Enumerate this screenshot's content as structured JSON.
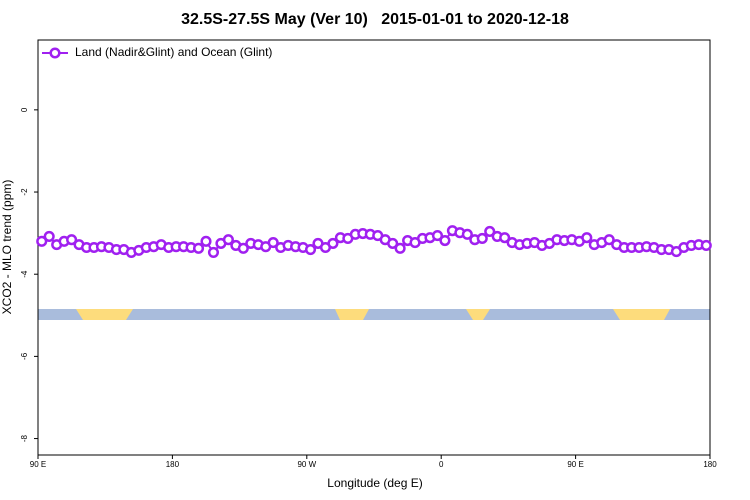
{
  "chart_data": {
    "type": "line",
    "title": "32.5S-27.5S May (Ver 10)   2015-01-01 to 2020-12-18",
    "x_label": "Longitude (deg E)",
    "y_label": "XCO2 - MLO trend (ppm)",
    "legend_position": "upper left",
    "xlim": [
      -270,
      180
    ],
    "ylim": [
      -8.4,
      1.7
    ],
    "xticks": [
      {
        "value": -270,
        "label": "90 E"
      },
      {
        "value": -180,
        "label": "180"
      },
      {
        "value": -90,
        "label": "90 W"
      },
      0,
      {
        "value": 90,
        "label": "90 E"
      },
      180
    ],
    "yticks": [
      0,
      -2,
      -4,
      -6,
      -8
    ],
    "x": [
      -267.5,
      -262.5,
      -257.5,
      -252.5,
      -247.5,
      -242.5,
      -237.5,
      -232.5,
      -227.5,
      -222.5,
      -217.5,
      -212.5,
      -207.5,
      -202.5,
      -197.5,
      -192.5,
      -187.5,
      -182.5,
      -177.5,
      -172.5,
      -167.5,
      -162.5,
      -157.5,
      -152.5,
      -147.5,
      -142.5,
      -137.5,
      -132.5,
      -127.5,
      -122.5,
      -117.5,
      -112.5,
      -107.5,
      -102.5,
      -97.5,
      -92.5,
      -87.5,
      -82.5,
      -77.5,
      -72.5,
      -67.5,
      -62.5,
      -57.5,
      -52.5,
      -47.5,
      -42.5,
      -37.5,
      -32.5,
      -27.5,
      -22.5,
      -17.5,
      -12.5,
      -7.5,
      -2.5,
      2.5,
      7.5,
      12.5,
      17.5,
      22.5,
      27.5,
      32.5,
      37.5,
      42.5,
      47.5,
      52.5,
      57.5,
      62.5,
      67.5,
      72.5,
      77.5,
      82.5,
      87.5,
      92.5,
      97.5,
      102.5,
      107.5,
      112.5,
      117.5,
      122.5,
      127.5,
      132.5,
      137.5,
      142.5,
      147.5,
      152.5,
      157.5,
      162.5,
      167.5,
      172.5,
      177.5
    ],
    "series": [
      {
        "name": "Land (Nadir&Glint) and Ocean (Glint)",
        "color": "#a020f0",
        "values": [
          -3.2,
          -3.08,
          -3.28,
          -3.2,
          -3.16,
          -3.28,
          -3.35,
          -3.35,
          -3.33,
          -3.35,
          -3.4,
          -3.4,
          -3.47,
          -3.42,
          -3.35,
          -3.33,
          -3.28,
          -3.35,
          -3.33,
          -3.33,
          -3.35,
          -3.37,
          -3.2,
          -3.47,
          -3.25,
          -3.16,
          -3.3,
          -3.37,
          -3.25,
          -3.28,
          -3.33,
          -3.23,
          -3.35,
          -3.3,
          -3.33,
          -3.35,
          -3.4,
          -3.25,
          -3.35,
          -3.25,
          -3.11,
          -3.13,
          -3.03,
          -3.01,
          -3.03,
          -3.06,
          -3.16,
          -3.25,
          -3.37,
          -3.18,
          -3.23,
          -3.13,
          -3.11,
          -3.06,
          -3.18,
          -2.94,
          -2.99,
          -3.03,
          -3.16,
          -3.13,
          -2.96,
          -3.08,
          -3.11,
          -3.23,
          -3.28,
          -3.25,
          -3.23,
          -3.3,
          -3.25,
          -3.16,
          -3.18,
          -3.16,
          -3.2,
          -3.11,
          -3.28,
          -3.23,
          -3.16,
          -3.28,
          -3.35,
          -3.35,
          -3.35,
          -3.33,
          -3.35,
          -3.4,
          -3.4,
          -3.45,
          -3.35,
          -3.3,
          -3.28,
          -3.3
        ]
      }
    ]
  }
}
